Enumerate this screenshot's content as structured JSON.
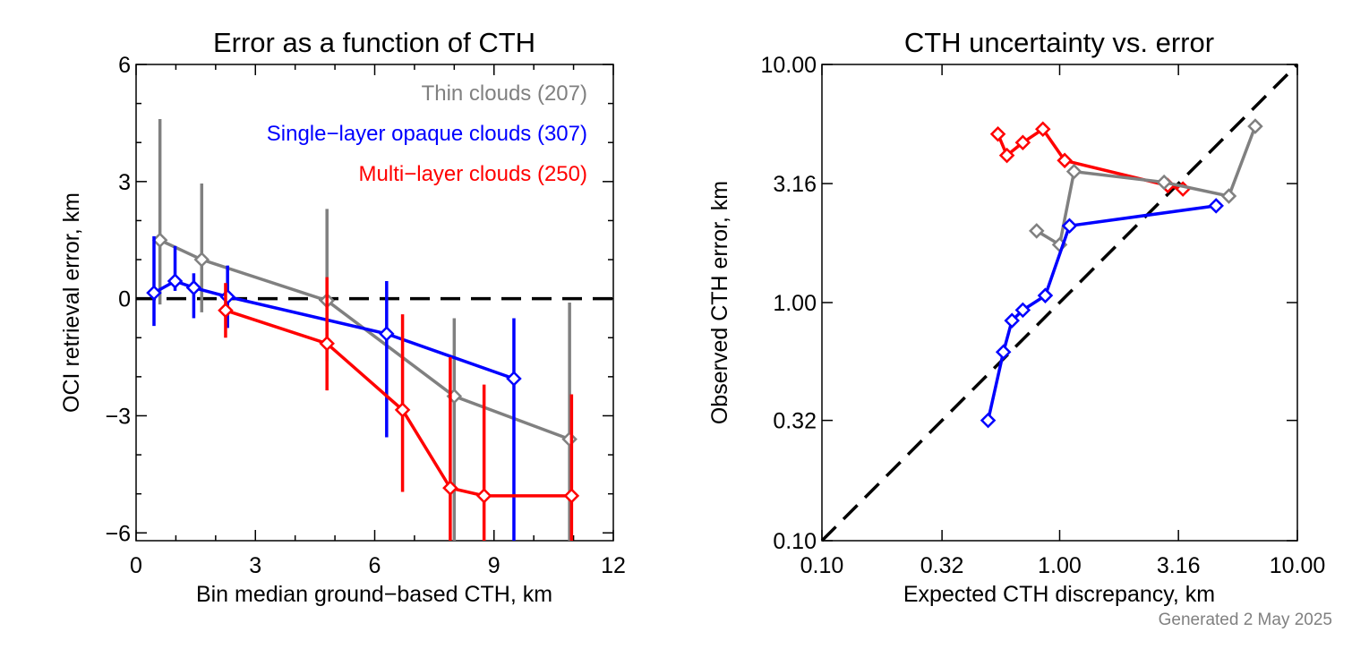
{
  "footer": "Generated 2 May 2025",
  "chart_data": [
    {
      "type": "line",
      "title": "Error as a function of CTH",
      "xlabel": "Bin median ground−based CTH, km",
      "ylabel": "OCI retrieval error, km",
      "xlim": [
        0,
        12
      ],
      "ylim": [
        -6.2,
        6
      ],
      "xticks": [
        0,
        3,
        6,
        9,
        12
      ],
      "xtick_labels": [
        "0",
        "3",
        "6",
        "9",
        "12"
      ],
      "yticks": [
        -6,
        -3,
        0,
        3,
        6
      ],
      "ytick_labels": [
        "−6",
        "−3",
        "0",
        "3",
        "6"
      ],
      "reference_line": {
        "type": "horizontal",
        "y": 0,
        "style": "dashed",
        "color": "#000000"
      },
      "legend_position": "top-right",
      "series": [
        {
          "name": "Thin clouds (207)",
          "color": "#808080",
          "x": [
            0.6,
            1.65,
            4.8,
            8.0,
            10.9
          ],
          "y": [
            1.5,
            1.0,
            -0.05,
            -2.5,
            -3.6
          ],
          "err_low": [
            -0.15,
            -0.35,
            -1.6,
            -6.2,
            -6.2
          ],
          "err_high": [
            4.6,
            2.95,
            2.3,
            -0.5,
            -0.1
          ]
        },
        {
          "name": "Single−layer opaque clouds (307)",
          "color": "#0000ff",
          "x": [
            0.45,
            0.98,
            1.45,
            2.3,
            6.3,
            9.5
          ],
          "y": [
            0.15,
            0.45,
            0.28,
            0.05,
            -0.9,
            -2.05
          ],
          "err_low": [
            -0.7,
            0.2,
            -0.5,
            -0.75,
            -3.55,
            -6.2
          ],
          "err_high": [
            1.6,
            1.35,
            0.65,
            0.85,
            0.45,
            -0.5
          ]
        },
        {
          "name": "Multi−layer clouds (250)",
          "color": "#ff0000",
          "x": [
            2.25,
            4.8,
            6.7,
            7.9,
            8.75,
            10.95
          ],
          "y": [
            -0.3,
            -1.15,
            -2.85,
            -4.85,
            -5.05,
            -5.05
          ],
          "err_low": [
            -1.0,
            -2.35,
            -4.95,
            -6.2,
            -6.2,
            -6.2
          ],
          "err_high": [
            0.4,
            0.55,
            -0.4,
            -1.5,
            -2.2,
            -2.45
          ]
        }
      ]
    },
    {
      "type": "line",
      "title": "CTH uncertainty vs. error",
      "xlabel": "Expected CTH discrepancy, km",
      "ylabel": "Observed CTH error, km",
      "xscale": "log",
      "yscale": "log",
      "xlim": [
        0.1,
        10
      ],
      "ylim": [
        0.1,
        10
      ],
      "xticks": [
        0.1,
        0.32,
        1.0,
        3.16,
        10.0
      ],
      "xtick_labels": [
        "0.10",
        "0.32",
        "1.00",
        "3.16",
        "10.00"
      ],
      "yticks": [
        0.1,
        0.32,
        1.0,
        3.16,
        10.0
      ],
      "ytick_labels": [
        "0.10",
        "0.32",
        "1.00",
        "3.16",
        "10.00"
      ],
      "reference_line": {
        "type": "one-to-one",
        "style": "dashed",
        "color": "#000000"
      },
      "series": [
        {
          "color": "#ff0000",
          "x": [
            0.55,
            0.6,
            0.7,
            0.85,
            1.05,
            2.85,
            3.3
          ],
          "y": [
            5.1,
            4.15,
            4.7,
            5.35,
            3.95,
            3.1,
            3.0
          ]
        },
        {
          "color": "#808080",
          "x": [
            0.8,
            1.0,
            1.15,
            2.75,
            5.15,
            6.65
          ],
          "y": [
            2.0,
            1.75,
            3.55,
            3.2,
            2.8,
            5.5
          ]
        },
        {
          "color": "#0000ff",
          "x": [
            0.5,
            0.58,
            0.63,
            0.7,
            0.87,
            1.1,
            4.55
          ],
          "y": [
            0.32,
            0.62,
            0.84,
            0.93,
            1.07,
            2.1,
            2.55
          ]
        }
      ]
    }
  ]
}
